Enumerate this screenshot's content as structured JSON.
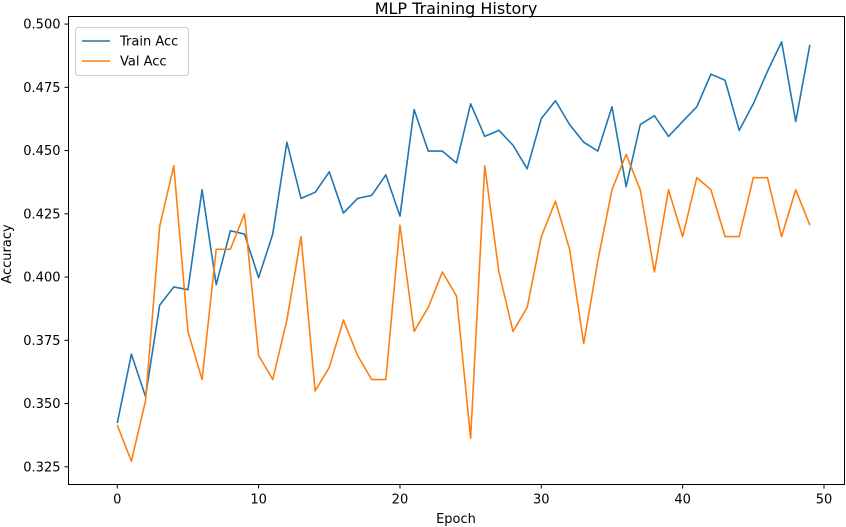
{
  "chart_data": {
    "type": "line",
    "title": "MLP Training History",
    "xlabel": "Epoch",
    "ylabel": "Accuracy",
    "xlim": [
      -3.45,
      51.45
    ],
    "ylim": [
      0.318,
      0.503
    ],
    "xticks": [
      0,
      10,
      20,
      30,
      40,
      50
    ],
    "yticks": [
      0.325,
      0.35,
      0.375,
      0.4,
      0.425,
      0.45,
      0.475,
      0.5
    ],
    "ytick_labels": [
      "0.325",
      "0.350",
      "0.375",
      "0.400",
      "0.425",
      "0.450",
      "0.475",
      "0.500"
    ],
    "grid": false,
    "legend_position": "upper-left",
    "x": [
      0,
      1,
      2,
      3,
      4,
      5,
      6,
      7,
      8,
      9,
      10,
      11,
      12,
      13,
      14,
      15,
      16,
      17,
      18,
      19,
      20,
      21,
      22,
      23,
      24,
      25,
      26,
      27,
      28,
      29,
      30,
      31,
      32,
      33,
      34,
      35,
      36,
      37,
      38,
      39,
      40,
      41,
      42,
      43,
      44,
      45,
      46,
      47,
      48,
      49
    ],
    "series": [
      {
        "name": "Train Acc",
        "color": "#1f77b4",
        "values": [
          0.3423,
          0.3695,
          0.3528,
          0.3889,
          0.3961,
          0.395,
          0.4345,
          0.397,
          0.4183,
          0.417,
          0.3998,
          0.417,
          0.4533,
          0.4311,
          0.4335,
          0.4416,
          0.4253,
          0.4311,
          0.4323,
          0.4404,
          0.4241,
          0.4662,
          0.4498,
          0.4498,
          0.4451,
          0.4685,
          0.4556,
          0.458,
          0.4521,
          0.4428,
          0.4627,
          0.4697,
          0.4603,
          0.4533,
          0.4498,
          0.4673,
          0.4357,
          0.4603,
          0.4638,
          0.4556,
          0.4615,
          0.4673,
          0.4802,
          0.4778,
          0.458,
          0.4685,
          0.4813,
          0.493,
          0.4615,
          0.4918
        ]
      },
      {
        "name": "Val Acc",
        "color": "#ff7f0e",
        "values": [
          0.3415,
          0.3272,
          0.3511,
          0.42,
          0.444,
          0.3785,
          0.3595,
          0.411,
          0.411,
          0.425,
          0.369,
          0.3595,
          0.383,
          0.416,
          0.355,
          0.3643,
          0.383,
          0.369,
          0.3595,
          0.3595,
          0.4205,
          0.3785,
          0.388,
          0.402,
          0.3925,
          0.3363,
          0.444,
          0.402,
          0.3785,
          0.388,
          0.416,
          0.43,
          0.411,
          0.3737,
          0.4065,
          0.4345,
          0.4485,
          0.4345,
          0.402,
          0.4345,
          0.416,
          0.4393,
          0.4345,
          0.416,
          0.416,
          0.4393,
          0.4393,
          0.416,
          0.4345,
          0.4205
        ]
      }
    ]
  }
}
